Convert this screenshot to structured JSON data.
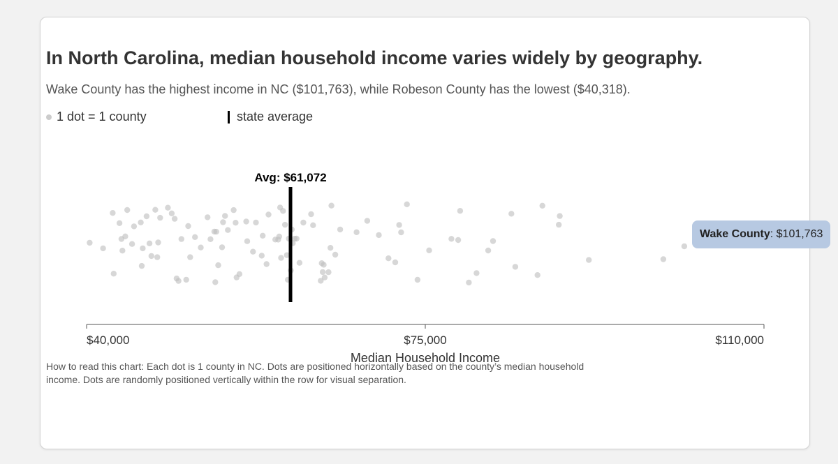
{
  "header": {
    "title": "In North Carolina, median household income varies widely by geography.",
    "subtitle": "Wake County has the highest income in NC ($101,763), while Robeson County has the lowest ($40,318)."
  },
  "legend": {
    "dot_label": "1 dot = 1 county",
    "avg_label": "state average"
  },
  "tooltip": {
    "county": "Wake County",
    "value": ": $101,763"
  },
  "note": "How to read this chart: Each dot is 1 county in NC. Dots are positioned horizontally based on the county’s median household income. Dots are randomly positioned vertically within the row for visual separation.",
  "colors": {
    "dot": "#bfbfbf",
    "avg_line": "#000000",
    "tooltip_bg": "#b7c9e2"
  },
  "chart_data": {
    "type": "scatter",
    "title": "In North Carolina, median household income varies widely by geography.",
    "xlabel": "Median Household Income",
    "xlim": [
      40000,
      110000
    ],
    "x_ticks": [
      {
        "value": 40000,
        "label": "$40,000"
      },
      {
        "value": 75000,
        "label": "$75,000"
      },
      {
        "value": 110000,
        "label": "$110,000"
      }
    ],
    "average": {
      "value": 61072,
      "label": "Avg: $61,072"
    },
    "highlight": {
      "value": 101763,
      "label": "Wake County"
    },
    "values": [
      40318,
      41700,
      42700,
      43400,
      43600,
      44700,
      44200,
      42800,
      43700,
      44000,
      44900,
      45700,
      46700,
      47100,
      46500,
      45600,
      47300,
      46200,
      45800,
      47400,
      47600,
      48400,
      49300,
      49500,
      48800,
      49800,
      50300,
      49100,
      51200,
      51800,
      50700,
      50500,
      52500,
      53300,
      52800,
      54100,
      54000,
      54600,
      54300,
      53600,
      53400,
      53200,
      55200,
      55500,
      55400,
      55800,
      56600,
      57500,
      57200,
      58200,
      58600,
      58100,
      58800,
      56500,
      59500,
      60300,
      60000,
      59900,
      60100,
      60700,
      60800,
      61200,
      60900,
      61300,
      61700,
      61100,
      59800,
      61500,
      60500,
      62400,
      62000,
      63200,
      63400,
      64500,
      64400,
      64200,
      64600,
      65000,
      64300,
      65700,
      65200,
      65300,
      66200,
      67900,
      69000,
      70200,
      71200,
      71900,
      72300,
      74200,
      73100,
      72500,
      75400,
      77700,
      78600,
      79500,
      78400,
      80300,
      81500,
      82000,
      83900,
      84300,
      86600,
      88800,
      87100,
      88900,
      91900,
      99600,
      101763
    ]
  }
}
